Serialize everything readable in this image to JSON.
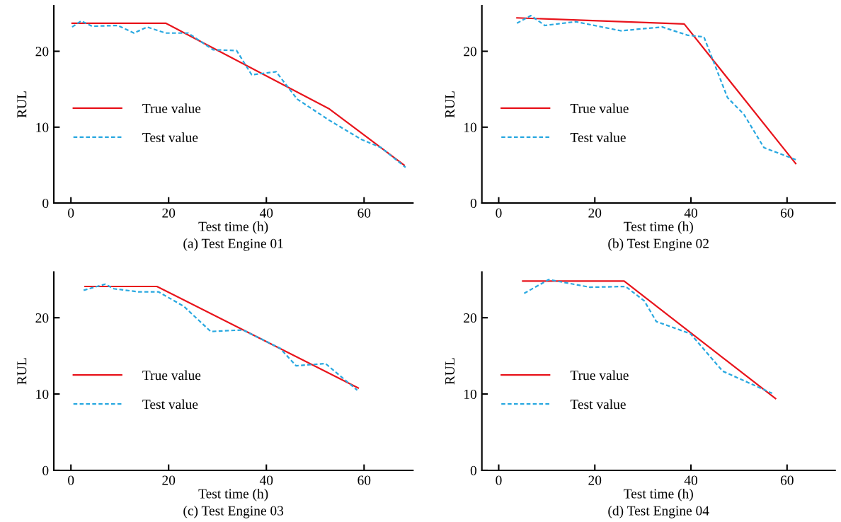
{
  "chart_data": [
    {
      "type": "line",
      "xlabel": "Test time (h)",
      "ylabel": "RUL",
      "annotations": [
        "(a) Test Engine 01"
      ],
      "xlim": [
        -3.5,
        70
      ],
      "ylim": [
        0,
        26
      ],
      "xticks": [
        0,
        20,
        40,
        60
      ],
      "yticks": [
        0,
        10,
        20
      ],
      "grid": false,
      "legend": "center left",
      "series": [
        {
          "name": "True value",
          "color": "#e8141c",
          "line_style": "solid",
          "x": [
            0.25,
            19.4,
            52.9,
            68.2
          ],
          "values": [
            23.7,
            23.7,
            12.4,
            5.0
          ]
        },
        {
          "name": "Test value",
          "color": "#29a8e0",
          "line_style": "dashed",
          "x": [
            0.25,
            2.1,
            4.3,
            9.6,
            12.9,
            15.6,
            19.4,
            24.0,
            29.1,
            33.9,
            37.0,
            42.0,
            46.3,
            52.9,
            59.4,
            63.5,
            68.5
          ],
          "values": [
            23.2,
            24.0,
            23.3,
            23.4,
            22.4,
            23.2,
            22.4,
            22.4,
            20.2,
            20.1,
            16.9,
            17.3,
            13.7,
            10.9,
            8.4,
            7.3,
            4.7
          ]
        }
      ]
    },
    {
      "type": "line",
      "xlabel": "Test time (h)",
      "ylabel": "RUL",
      "annotations": [
        "(b) Test Engine 02"
      ],
      "xlim": [
        -3.5,
        70
      ],
      "ylim": [
        0,
        26
      ],
      "xticks": [
        0,
        20,
        40,
        60
      ],
      "yticks": [
        0,
        10,
        20
      ],
      "grid": false,
      "legend": "center left",
      "series": [
        {
          "name": "True value",
          "color": "#e8141c",
          "line_style": "solid",
          "x": [
            3.8,
            38.6,
            61.8
          ],
          "values": [
            24.4,
            23.6,
            5.2
          ]
        },
        {
          "name": "Test value",
          "color": "#29a8e0",
          "line_style": "dashed",
          "x": [
            3.8,
            6.7,
            9.6,
            16.0,
            25.4,
            34.0,
            39.4,
            42.7,
            44.6,
            47.6,
            51.0,
            55.2,
            61.9
          ],
          "values": [
            23.7,
            24.7,
            23.4,
            23.9,
            22.7,
            23.2,
            22.1,
            21.9,
            18.8,
            13.9,
            11.7,
            7.3,
            5.7
          ]
        }
      ]
    },
    {
      "type": "line",
      "xlabel": "Test time (h)",
      "ylabel": "RUL",
      "annotations": [
        "(c) Test Engine 03"
      ],
      "xlim": [
        -3.5,
        70
      ],
      "ylim": [
        0,
        26
      ],
      "xticks": [
        0,
        20,
        40,
        60
      ],
      "yticks": [
        0,
        10,
        20
      ],
      "grid": false,
      "legend": "center left",
      "series": [
        {
          "name": "True value",
          "color": "#e8141c",
          "line_style": "solid",
          "x": [
            2.9,
            17.6,
            58.8
          ],
          "values": [
            24.1,
            24.1,
            10.8
          ]
        },
        {
          "name": "Test value",
          "color": "#29a8e0",
          "line_style": "dashed",
          "x": [
            2.6,
            7.0,
            8.8,
            13.8,
            17.9,
            23.1,
            28.6,
            35.2,
            42.8,
            46.1,
            52.1,
            58.6
          ],
          "values": [
            23.6,
            24.4,
            23.8,
            23.4,
            23.4,
            21.5,
            18.2,
            18.4,
            16.0,
            13.7,
            14.0,
            10.5
          ]
        }
      ]
    },
    {
      "type": "line",
      "xlabel": "Test time (h)",
      "ylabel": "RUL",
      "annotations": [
        "(d) Test Engine 04"
      ],
      "xlim": [
        -3.5,
        70
      ],
      "ylim": [
        0,
        26
      ],
      "xticks": [
        0,
        20,
        40,
        60
      ],
      "yticks": [
        0,
        10,
        20
      ],
      "grid": false,
      "legend": "center left",
      "series": [
        {
          "name": "True value",
          "color": "#e8141c",
          "line_style": "solid",
          "x": [
            5.0,
            26.1,
            57.6
          ],
          "values": [
            24.8,
            24.8,
            9.4
          ]
        },
        {
          "name": "Test value",
          "color": "#29a8e0",
          "line_style": "dashed",
          "x": [
            5.3,
            10.4,
            19.0,
            26.4,
            30.3,
            32.8,
            39.9,
            46.6,
            56.9
          ],
          "values": [
            23.2,
            25.0,
            24.0,
            24.1,
            22.2,
            19.5,
            17.9,
            13.0,
            10.1
          ]
        }
      ]
    }
  ]
}
